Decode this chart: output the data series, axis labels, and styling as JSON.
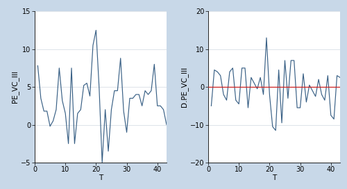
{
  "left_ylabel": "PE_VC_III",
  "right_ylabel": "D.PE_VC_III",
  "xlabel": "T",
  "left_ylim": [
    -5,
    15
  ],
  "right_ylim": [
    -20,
    20
  ],
  "left_yticks": [
    -5,
    0,
    5,
    10,
    15
  ],
  "right_yticks": [
    -20,
    -10,
    0,
    10,
    20
  ],
  "xticks": [
    0,
    10,
    20,
    30,
    40
  ],
  "line_color": "#3a6186",
  "ref_line_color": "#cc2222",
  "outer_bg": "#c8d8e8",
  "plot_bg": "#ffffff",
  "grid_color": "#d0d8e0",
  "tick_label_size": 7,
  "axis_label_size": 7.5,
  "pe_vc": [
    7.8,
    3.5,
    1.8,
    1.8,
    -0.2,
    0.5,
    2.0,
    7.5,
    3.2,
    1.5,
    -2.5,
    7.5,
    -2.5,
    1.5,
    2.0,
    5.2,
    5.5,
    3.8,
    10.5,
    12.5,
    5.0,
    -5.0,
    2.0,
    -3.5,
    2.0,
    4.5,
    4.5,
    8.8,
    1.8,
    -1.0,
    3.5,
    3.5,
    4.0,
    4.0,
    2.5,
    4.5,
    4.0,
    4.5,
    8.0,
    2.5,
    2.5,
    2.0,
    0.0,
    -0.2
  ],
  "d_pe_vc": [
    -5.0,
    4.5,
    4.0,
    3.0,
    -2.0,
    -3.5,
    4.0,
    5.0,
    -3.5,
    -4.5,
    5.0,
    5.0,
    -5.5,
    2.5,
    1.0,
    -0.5,
    2.5,
    -2.0,
    13.0,
    -2.0,
    -10.5,
    -11.5,
    4.5,
    -9.5,
    7.0,
    -3.0,
    7.0,
    7.0,
    -5.5,
    -5.5,
    3.5,
    -4.0,
    0.5,
    -1.0,
    -2.5,
    2.0,
    -2.0,
    -3.5,
    3.0,
    -7.5,
    -8.5,
    3.0,
    2.5,
    2.0
  ]
}
